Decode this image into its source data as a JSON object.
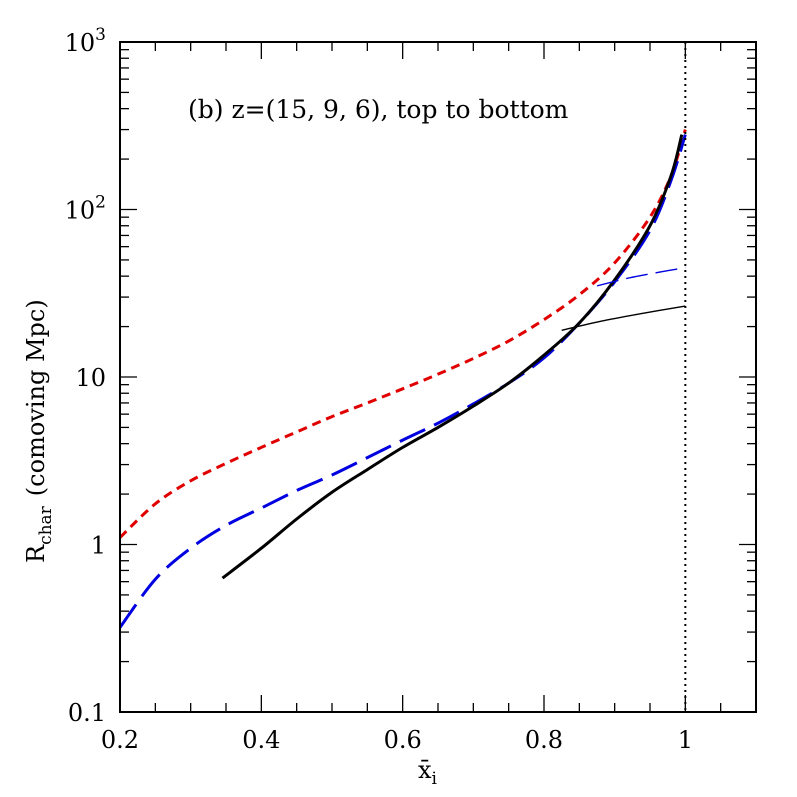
{
  "chart_data": {
    "type": "line",
    "annotation": "(b) z=(15, 9, 6), top to bottom",
    "xlabel": "x̄",
    "xlabel_subscript": "i",
    "ylabel_main": "R",
    "ylabel_sub": "char",
    "ylabel_rest": "(comoving Mpc)",
    "xlim": [
      0.2,
      1.1
    ],
    "ylim": [
      0.1,
      1000
    ],
    "yscale": "log",
    "grid": false,
    "legend": "none",
    "x_ticks": [
      {
        "value": 0.2,
        "label": "0.2"
      },
      {
        "value": 0.4,
        "label": "0.4"
      },
      {
        "value": 0.6,
        "label": "0.6"
      },
      {
        "value": 0.8,
        "label": "0.8"
      },
      {
        "value": 1.0,
        "label": "1"
      }
    ],
    "y_ticks": [
      {
        "value": 0.1,
        "label": "0.1"
      },
      {
        "value": 1,
        "label": "1"
      },
      {
        "value": 10,
        "label": "10"
      },
      {
        "value": 100,
        "label": "10",
        "sup": "2"
      },
      {
        "value": 1000,
        "label": "10",
        "sup": "3"
      }
    ],
    "vline": {
      "x": 1.0,
      "style": "dotted",
      "color": "#000000"
    },
    "series": [
      {
        "color": "#e00000",
        "width": 3,
        "dash": "9 6",
        "points": [
          [
            0.2,
            1.1
          ],
          [
            0.25,
            1.75
          ],
          [
            0.3,
            2.4
          ],
          [
            0.35,
            3.05
          ],
          [
            0.4,
            3.8
          ],
          [
            0.45,
            4.7
          ],
          [
            0.5,
            5.8
          ],
          [
            0.55,
            7.0
          ],
          [
            0.6,
            8.5
          ],
          [
            0.65,
            10.4
          ],
          [
            0.7,
            12.9
          ],
          [
            0.75,
            16.4
          ],
          [
            0.8,
            22
          ],
          [
            0.85,
            31
          ],
          [
            0.9,
            48
          ],
          [
            0.95,
            90
          ],
          [
            0.98,
            160
          ],
          [
            1.0,
            300
          ]
        ]
      },
      {
        "color": "#0000e0",
        "width": 3,
        "dash": "28 10",
        "points": [
          [
            0.2,
            0.32
          ],
          [
            0.25,
            0.62
          ],
          [
            0.3,
            0.95
          ],
          [
            0.35,
            1.3
          ],
          [
            0.4,
            1.65
          ],
          [
            0.45,
            2.1
          ],
          [
            0.5,
            2.6
          ],
          [
            0.55,
            3.3
          ],
          [
            0.6,
            4.2
          ],
          [
            0.65,
            5.3
          ],
          [
            0.7,
            6.9
          ],
          [
            0.75,
            9.2
          ],
          [
            0.8,
            13
          ],
          [
            0.85,
            21
          ],
          [
            0.9,
            37
          ],
          [
            0.95,
            75
          ],
          [
            0.98,
            150
          ],
          [
            1.0,
            280
          ]
        ]
      },
      {
        "color": "#000000",
        "width": 3,
        "dash": "",
        "points": [
          [
            0.345,
            0.63
          ],
          [
            0.4,
            0.95
          ],
          [
            0.45,
            1.42
          ],
          [
            0.5,
            2.05
          ],
          [
            0.55,
            2.8
          ],
          [
            0.6,
            3.8
          ],
          [
            0.65,
            5.0
          ],
          [
            0.7,
            6.7
          ],
          [
            0.75,
            9.2
          ],
          [
            0.8,
            13.5
          ],
          [
            0.85,
            21
          ],
          [
            0.9,
            38
          ],
          [
            0.95,
            80
          ],
          [
            0.98,
            160
          ],
          [
            0.995,
            280
          ]
        ]
      },
      {
        "color": "#0000e0",
        "width": 1.4,
        "dash": "22 8",
        "points": [
          [
            0.875,
            35
          ],
          [
            0.92,
            39
          ],
          [
            0.96,
            42
          ],
          [
            1.0,
            45
          ]
        ]
      },
      {
        "color": "#000000",
        "width": 1.4,
        "dash": "",
        "points": [
          [
            0.825,
            19
          ],
          [
            0.88,
            21.5
          ],
          [
            0.94,
            24
          ],
          [
            1.0,
            26.5
          ]
        ]
      }
    ]
  }
}
